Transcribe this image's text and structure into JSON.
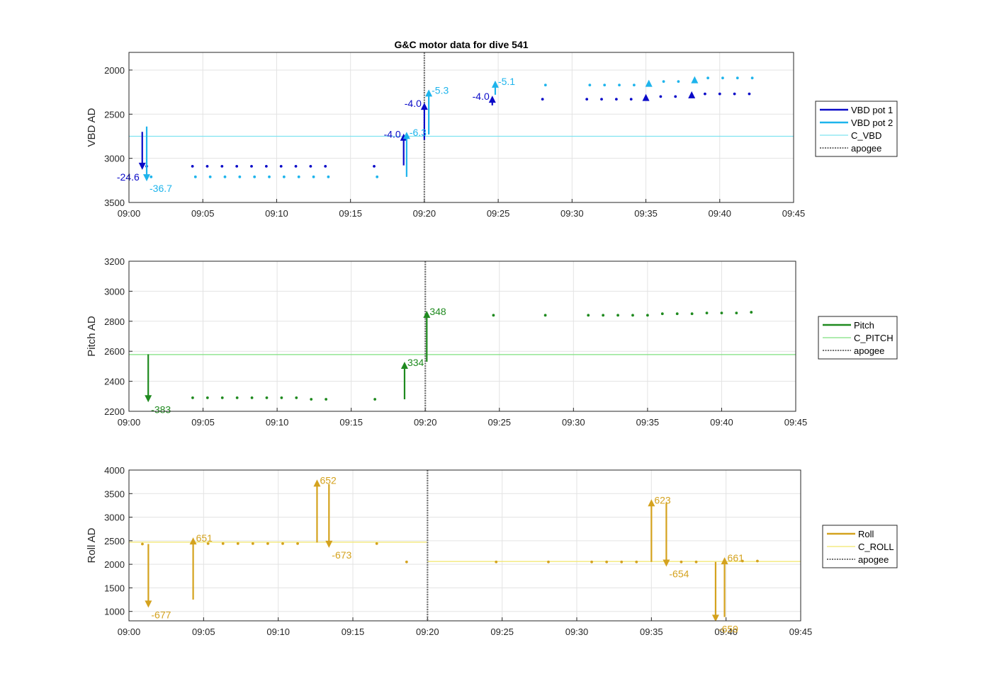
{
  "figure_title": "G&C motor data for dive 541",
  "colors": {
    "vbd1": "#0a0ac8",
    "vbd2": "#1eb4ec",
    "c_vbd": "#7fe3f0",
    "pitch": "#1f8a1f",
    "c_pitch": "#7ee07e",
    "roll": "#d4a21e",
    "c_roll": "#f2e66a",
    "apogee": "#707070",
    "grid": "#e3e3e3",
    "axis": "#262626"
  },
  "chart_data": [
    {
      "type": "scatter",
      "title": "G&C motor data for dive 541",
      "ylabel": "VBD AD",
      "xlabel": "",
      "xlim": [
        "09:00",
        "09:45"
      ],
      "xticks": [
        "09:00",
        "09:05",
        "09:10",
        "09:15",
        "09:20",
        "09:25",
        "09:30",
        "09:35",
        "09:40",
        "09:45"
      ],
      "ylim": [
        3500,
        1800
      ],
      "y_reversed": true,
      "yticks": [
        2000,
        2500,
        3000,
        3500
      ],
      "grid": true,
      "legend_position": "right",
      "legend": [
        "VBD pot 1",
        "VBD pot 2",
        "C_VBD",
        "apogee"
      ],
      "series": [
        {
          "name": "VBD pot 1",
          "color_key": "vbd1",
          "x": [
            "09:01.2",
            "09:04.3",
            "09:05.3",
            "09:06.3",
            "09:07.3",
            "09:08.3",
            "09:09.3",
            "09:10.3",
            "09:11.3",
            "09:12.3",
            "09:13.3",
            "09:16.6",
            "09:28.0",
            "09:31.0",
            "09:32.0",
            "09:33.0",
            "09:34.0",
            "09:36.0",
            "09:37.0",
            "09:39.0",
            "09:40.0",
            "09:41.0",
            "09:42.0"
          ],
          "y": [
            3090,
            3090,
            3090,
            3090,
            3090,
            3090,
            3090,
            3090,
            3090,
            3090,
            3090,
            3090,
            2330,
            2330,
            2330,
            2330,
            2330,
            2300,
            2300,
            2270,
            2270,
            2270,
            2270
          ]
        },
        {
          "name": "VBD pot 2",
          "color_key": "vbd2",
          "x": [
            "09:01.5",
            "09:04.5",
            "09:05.5",
            "09:06.5",
            "09:07.5",
            "09:08.5",
            "09:09.5",
            "09:10.5",
            "09:11.5",
            "09:12.5",
            "09:13.5",
            "09:16.8",
            "09:28.2",
            "09:31.2",
            "09:32.2",
            "09:33.2",
            "09:34.2",
            "09:36.2",
            "09:37.2",
            "09:39.2",
            "09:40.2",
            "09:41.2",
            "09:42.2"
          ],
          "y": [
            3210,
            3210,
            3210,
            3210,
            3210,
            3210,
            3210,
            3210,
            3210,
            3210,
            3210,
            3210,
            2170,
            2170,
            2170,
            2170,
            2170,
            2130,
            2130,
            2090,
            2090,
            2090,
            2090
          ]
        }
      ],
      "reference_line": {
        "name": "C_VBD",
        "y": 2750,
        "color_key": "c_vbd"
      },
      "apogee": "09:20",
      "moves": [
        {
          "series": "VBD pot 1",
          "x": "09:00.9",
          "from": 2700,
          "to": 3130,
          "label": "-24.6",
          "label_side": "left",
          "color_key": "vbd1"
        },
        {
          "series": "VBD pot 2",
          "x": "09:01.2",
          "from": 2640,
          "to": 3260,
          "label": "-36.7",
          "label_side": "right",
          "color_key": "vbd2"
        },
        {
          "series": "VBD pot 1",
          "x": "09:18.6",
          "from": 3080,
          "to": 2720,
          "label": "-4.0",
          "label_side": "left",
          "color_key": "vbd1"
        },
        {
          "series": "VBD pot 2",
          "x": "09:18.8",
          "from": 3210,
          "to": 2700,
          "label": "-6.3",
          "label_side": "right",
          "color_key": "vbd2"
        },
        {
          "series": "VBD pot 1",
          "x": "09:20.0",
          "from": 2790,
          "to": 2370,
          "label": "-4.0",
          "label_side": "left",
          "color_key": "vbd1"
        },
        {
          "series": "VBD pot 2",
          "x": "09:20.3",
          "from": 2730,
          "to": 2220,
          "label": "-5.3",
          "label_side": "right",
          "color_key": "vbd2"
        },
        {
          "series": "VBD pot 1",
          "x": "09:24.6",
          "from": 2400,
          "to": 2290,
          "label": "-4.0",
          "label_side": "left",
          "color_key": "vbd1"
        },
        {
          "series": "VBD pot 2",
          "x": "09:24.8",
          "from": 2280,
          "to": 2120,
          "label": "-5.1",
          "label_side": "right",
          "color_key": "vbd2"
        },
        {
          "series": "VBD pot 1",
          "x": "09:35.0",
          "from": 2320,
          "to": 2270,
          "label": "",
          "label_side": "right",
          "color_key": "vbd1"
        },
        {
          "series": "VBD pot 2",
          "x": "09:35.2",
          "from": 2170,
          "to": 2110,
          "label": "",
          "label_side": "right",
          "color_key": "vbd2"
        },
        {
          "series": "VBD pot 1",
          "x": "09:38.1",
          "from": 2290,
          "to": 2240,
          "label": "",
          "label_side": "right",
          "color_key": "vbd1"
        },
        {
          "series": "VBD pot 2",
          "x": "09:38.3",
          "from": 2130,
          "to": 2070,
          "label": "",
          "label_side": "right",
          "color_key": "vbd2"
        }
      ]
    },
    {
      "type": "scatter",
      "ylabel": "Pitch AD",
      "xlabel": "",
      "xlim": [
        "09:00",
        "09:45"
      ],
      "xticks": [
        "09:00",
        "09:05",
        "09:10",
        "09:15",
        "09:20",
        "09:25",
        "09:30",
        "09:35",
        "09:40",
        "09:45"
      ],
      "ylim": [
        2200,
        3200
      ],
      "y_reversed": false,
      "yticks": [
        2200,
        2400,
        2600,
        2800,
        3000,
        3200
      ],
      "grid": true,
      "legend_position": "right",
      "legend": [
        "Pitch",
        "C_PITCH",
        "apogee"
      ],
      "series": [
        {
          "name": "Pitch",
          "color_key": "pitch",
          "x": [
            "09:04.3",
            "09:05.3",
            "09:06.3",
            "09:07.3",
            "09:08.3",
            "09:09.3",
            "09:10.3",
            "09:11.3",
            "09:12.3",
            "09:13.3",
            "09:16.6",
            "09:24.6",
            "09:28.1",
            "09:31.0",
            "09:32.0",
            "09:33.0",
            "09:34.0",
            "09:35.0",
            "09:36.0",
            "09:37.0",
            "09:38.0",
            "09:39.0",
            "09:40.0",
            "09:41.0",
            "09:42.0"
          ],
          "y": [
            2290,
            2290,
            2290,
            2290,
            2290,
            2290,
            2290,
            2290,
            2280,
            2280,
            2280,
            2840,
            2840,
            2840,
            2840,
            2840,
            2840,
            2840,
            2850,
            2850,
            2850,
            2855,
            2855,
            2855,
            2860
          ]
        }
      ],
      "reference_line": {
        "name": "C_PITCH",
        "y": 2578,
        "color_key": "c_pitch"
      },
      "apogee": "09:20",
      "moves": [
        {
          "series": "Pitch",
          "x": "09:01.3",
          "from": 2580,
          "to": 2260,
          "label": "-383",
          "label_side": "right",
          "color_key": "pitch"
        },
        {
          "series": "Pitch",
          "x": "09:18.6",
          "from": 2280,
          "to": 2530,
          "label": "334",
          "label_side": "right",
          "color_key": "pitch"
        },
        {
          "series": "Pitch",
          "x": "09:20.1",
          "from": 2530,
          "to": 2870,
          "label": "348",
          "label_side": "right",
          "color_key": "pitch"
        }
      ]
    },
    {
      "type": "scatter",
      "ylabel": "Roll AD",
      "xlabel": "",
      "xlim": [
        "09:00",
        "09:45"
      ],
      "xticks": [
        "09:00",
        "09:05",
        "09:10",
        "09:15",
        "09:20",
        "09:25",
        "09:30",
        "09:35",
        "09:40",
        "09:45"
      ],
      "ylim": [
        800,
        4000
      ],
      "y_reversed": false,
      "yticks": [
        1000,
        1500,
        2000,
        2500,
        3000,
        3500,
        4000
      ],
      "grid": true,
      "legend_position": "right",
      "legend": [
        "Roll",
        "C_ROLL",
        "apogee"
      ],
      "series": [
        {
          "name": "Roll",
          "color_key": "roll",
          "x": [
            "09:00.9",
            "09:05.3",
            "09:06.3",
            "09:07.3",
            "09:08.3",
            "09:09.3",
            "09:10.3",
            "09:11.3",
            "09:16.6",
            "09:18.6",
            "09:24.6",
            "09:28.1",
            "09:31.0",
            "09:32.0",
            "09:33.0",
            "09:34.0",
            "09:37.0",
            "09:38.0",
            "09:41.1",
            "09:42.1"
          ],
          "y": [
            2430,
            2440,
            2440,
            2440,
            2440,
            2440,
            2440,
            2440,
            2440,
            2050,
            2050,
            2050,
            2050,
            2050,
            2050,
            2050,
            2050,
            2050,
            2070,
            2070
          ]
        }
      ],
      "reference_line": {
        "name": "C_ROLL",
        "segments": [
          {
            "x0": "09:00",
            "x1": "09:20",
            "y": 2470
          },
          {
            "x0": "09:20",
            "x1": "09:45",
            "y": 2060
          }
        ],
        "color_key": "c_roll"
      },
      "apogee": "09:20",
      "moves": [
        {
          "series": "Roll",
          "x": "09:01.3",
          "from": 2430,
          "to": 1080,
          "label": "-677",
          "label_side": "right",
          "color_key": "roll"
        },
        {
          "series": "Roll",
          "x": "09:04.3",
          "from": 1250,
          "to": 2570,
          "label": "651",
          "label_side": "right",
          "color_key": "roll"
        },
        {
          "series": "Roll",
          "x": "09:12.6",
          "from": 2460,
          "to": 3800,
          "label": "652",
          "label_side": "right",
          "color_key": "roll"
        },
        {
          "series": "Roll",
          "x": "09:13.4",
          "from": 3700,
          "to": 2350,
          "label": "-673",
          "label_side": "right",
          "color_key": "roll"
        },
        {
          "series": "Roll",
          "x": "09:35.0",
          "from": 2050,
          "to": 3380,
          "label": "623",
          "label_side": "right",
          "color_key": "roll"
        },
        {
          "series": "Roll",
          "x": "09:36.0",
          "from": 3300,
          "to": 1950,
          "label": "-654",
          "label_side": "right",
          "color_key": "roll"
        },
        {
          "series": "Roll",
          "x": "09:39.3",
          "from": 2050,
          "to": 780,
          "label": "-659",
          "label_side": "right",
          "color_key": "roll"
        },
        {
          "series": "Roll",
          "x": "09:39.9",
          "from": 880,
          "to": 2150,
          "label": "661",
          "label_side": "right",
          "color_key": "roll"
        }
      ]
    }
  ]
}
